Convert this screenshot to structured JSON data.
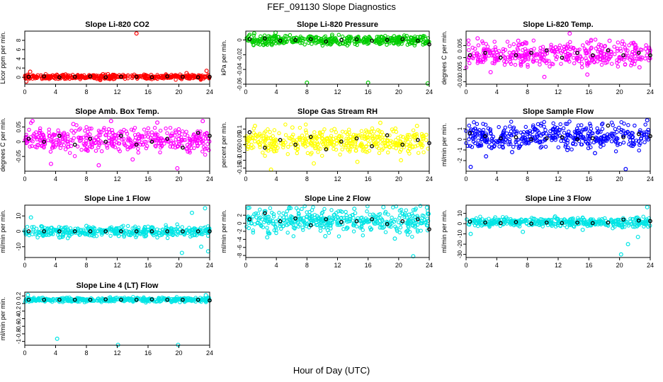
{
  "figure": {
    "title": "FEF_091130  Slope Diagnostics",
    "xlabel": "Hour of Day (UTC)"
  },
  "chart_data": [
    {
      "type": "scatter",
      "title": "Slope Li-820 CO2",
      "ylabel": "Licor ppm per min.",
      "xlim": [
        0,
        24
      ],
      "ylim": [
        -1.5,
        10
      ],
      "xticks": [
        0,
        4,
        8,
        12,
        16,
        20,
        24
      ],
      "yticks": [
        0,
        2,
        4,
        6,
        8
      ],
      "color": "#ff0000",
      "series": [
        {
          "x": [
            0.2,
            0.7,
            2.1,
            5.3,
            9.8,
            14.5,
            16.4,
            21.0,
            23.6
          ],
          "y": [
            -0.9,
            1.2,
            0.4,
            0.6,
            -0.6,
            9.5,
            0.5,
            0.9,
            1.4
          ]
        }
      ],
      "sample_series": [
        {
          "x": [
            0.5,
            2.5,
            4.5,
            6.5,
            8.5,
            10.5,
            12.5,
            14.5,
            16.5,
            18.5,
            20.5,
            22.5,
            24.0
          ],
          "y": [
            0.1,
            0.2,
            0.0,
            0.1,
            0.2,
            0.0,
            0.1,
            0.1,
            0.0,
            0.2,
            0.1,
            0.0,
            0.1
          ]
        }
      ]
    },
    {
      "type": "scatter",
      "title": "Slope Li-820 Pressure",
      "ylabel": "kPa per min.",
      "xlim": [
        0,
        24
      ],
      "ylim": [
        -0.06,
        0.012
      ],
      "xticks": [
        0,
        4,
        8,
        12,
        16,
        20,
        24
      ],
      "yticks": [
        -0.06,
        -0.04,
        -0.02,
        0.0
      ],
      "color": "#00cc00",
      "series": [
        {
          "x": [
            1.1,
            3.9,
            8.0,
            11.3,
            16.0,
            19.4,
            23.8
          ],
          "y": [
            0.009,
            0.01,
            -0.058,
            0.007,
            -0.058,
            0.005,
            -0.059
          ]
        }
      ],
      "sample_series": [
        {
          "x": [
            0.5,
            2.5,
            4.5,
            6.5,
            8.5,
            10.5,
            12.5,
            14.5,
            16.5,
            18.5,
            20.5,
            22.5,
            24.0
          ],
          "y": [
            0.001,
            0.002,
            -0.001,
            0.0,
            0.001,
            -0.002,
            0.0,
            0.001,
            -0.001,
            0.0,
            0.001,
            -0.001,
            -0.006
          ]
        }
      ]
    },
    {
      "type": "scatter",
      "title": "Slope Li-820 Temp.",
      "ylabel": "degrees C per min.",
      "xlim": [
        0,
        24
      ],
      "ylim": [
        -0.011,
        0.011
      ],
      "xticks": [
        0,
        4,
        8,
        12,
        16,
        20,
        24
      ],
      "yticks": [
        -0.01,
        -0.005,
        0.0,
        0.005
      ],
      "color": "#ff00ff",
      "series": [
        {
          "x": [
            1.5,
            3.2,
            6.8,
            10.2,
            13.5,
            15.8,
            18.7,
            22.6
          ],
          "y": [
            0.008,
            -0.006,
            0.007,
            -0.008,
            0.01,
            -0.007,
            0.007,
            -0.004
          ]
        }
      ],
      "sample_series": [
        {
          "x": [
            0.5,
            2.5,
            4.5,
            6.5,
            8.5,
            10.5,
            12.5,
            14.5,
            16.5,
            18.5,
            20.5,
            22.5,
            24.0
          ],
          "y": [
            0.001,
            0.002,
            0.0,
            0.001,
            0.002,
            0.003,
            0.0,
            0.002,
            0.001,
            0.003,
            0.001,
            0.002,
            0.001
          ]
        }
      ]
    },
    {
      "type": "scatter",
      "title": "Slope Amb. Box Temp.",
      "ylabel": "degrees C per min.",
      "xlim": [
        0,
        24
      ],
      "ylim": [
        -0.1,
        0.08
      ],
      "xticks": [
        0,
        4,
        8,
        12,
        16,
        20,
        24
      ],
      "yticks": [
        -0.05,
        0.0,
        0.05
      ],
      "color": "#ff00ff",
      "series": [
        {
          "x": [
            1.0,
            3.4,
            6.3,
            9.6,
            11.2,
            14.0,
            17.2,
            19.8,
            23.1
          ],
          "y": [
            0.07,
            -0.075,
            0.06,
            -0.08,
            0.07,
            -0.06,
            0.065,
            -0.09,
            0.07
          ]
        }
      ],
      "sample_series": [
        {
          "x": [
            0.5,
            2.5,
            4.5,
            6.5,
            8.5,
            10.5,
            12.5,
            14.5,
            16.5,
            18.5,
            20.5,
            22.5,
            24.0
          ],
          "y": [
            0.01,
            0.0,
            0.02,
            -0.01,
            0.01,
            0.0,
            0.02,
            -0.01,
            0.0,
            0.01,
            -0.02,
            0.03,
            0.02
          ]
        }
      ]
    },
    {
      "type": "scatter",
      "title": "Slope Gas Stream RH",
      "ylabel": "percent per min.",
      "xlim": [
        0,
        24
      ],
      "ylim": [
        -0.17,
        0.17
      ],
      "xticks": [
        0,
        4,
        8,
        12,
        16,
        20,
        24
      ],
      "yticks": [
        -0.15,
        -0.1,
        -0.05,
        0.0,
        0.05,
        0.1
      ],
      "color": "#ffff00",
      "series": [
        {
          "x": [
            1.2,
            3.3,
            6.1,
            8.9,
            11.6,
            14.6,
            17.6,
            20.3,
            22.4
          ],
          "y": [
            0.12,
            -0.16,
            0.11,
            -0.12,
            0.1,
            -0.11,
            0.14,
            -0.1,
            0.12
          ]
        }
      ],
      "sample_series": [
        {
          "x": [
            0.5,
            2.5,
            4.5,
            6.5,
            8.5,
            10.5,
            12.5,
            14.5,
            16.5,
            18.5,
            20.5,
            22.5,
            24.0
          ],
          "y": [
            0.08,
            -0.02,
            0.03,
            0.0,
            0.05,
            -0.03,
            0.02,
            0.04,
            -0.01,
            0.06,
            0.0,
            0.03,
            0.01
          ]
        }
      ]
    },
    {
      "type": "scatter",
      "title": "Slope Sample Flow",
      "ylabel": "ml/min per min.",
      "xlim": [
        0,
        24
      ],
      "ylim": [
        -3,
        2
      ],
      "xticks": [
        0,
        4,
        8,
        12,
        16,
        20,
        24
      ],
      "yticks": [
        -2,
        -1,
        0,
        1
      ],
      "color": "#0000ff",
      "series": [
        {
          "x": [
            0.6,
            2.6,
            6.0,
            9.3,
            13.2,
            16.8,
            20.8,
            23.6
          ],
          "y": [
            -2.6,
            -1.6,
            -1.2,
            0.8,
            -1.0,
            -1.3,
            -2.8,
            1.8
          ]
        }
      ],
      "sample_series": [
        {
          "x": [
            0.5,
            2.5,
            4.5,
            6.5,
            8.5,
            10.5,
            12.5,
            14.5,
            16.5,
            18.5,
            20.5,
            22.5,
            24.0
          ],
          "y": [
            0.6,
            0.3,
            0.1,
            0.2,
            0.0,
            0.1,
            0.2,
            0.0,
            0.1,
            1.3,
            0.2,
            0.5,
            0.3
          ]
        }
      ]
    },
    {
      "type": "scatter",
      "title": "Slope Line 1 Flow",
      "ylabel": "ml/min per min.",
      "xlim": [
        0,
        24
      ],
      "ylim": [
        -17,
        17
      ],
      "xticks": [
        0,
        4,
        8,
        12,
        16,
        20,
        24
      ],
      "yticks": [
        -10,
        0,
        10
      ],
      "color": "#00e5e5",
      "series": [
        {
          "x": [
            0.8,
            4.5,
            8.0,
            12.2,
            16.0,
            20.4,
            21.7,
            22.9,
            23.4,
            23.8
          ],
          "y": [
            9.0,
            -4.0,
            3.5,
            -3.0,
            3.0,
            -14.0,
            12.0,
            -10.0,
            15.0,
            -13.0
          ]
        }
      ],
      "sample_series": [
        {
          "x": [
            0.5,
            2.5,
            4.5,
            6.5,
            8.5,
            10.5,
            12.5,
            14.5,
            16.5,
            18.5,
            20.5,
            22.5,
            24.0
          ],
          "y": [
            0,
            0,
            0,
            0,
            0,
            0,
            0,
            0,
            0,
            0,
            0,
            0,
            0
          ]
        }
      ]
    },
    {
      "type": "scatter",
      "title": "Slope Line 2 Flow",
      "ylabel": "ml/min per min.",
      "xlim": [
        0,
        24
      ],
      "ylim": [
        -8.5,
        4.5
      ],
      "xticks": [
        0,
        4,
        8,
        12,
        16,
        20,
        24
      ],
      "yticks": [
        -8,
        -6,
        -4,
        -2,
        0,
        2
      ],
      "color": "#00e5e5",
      "series": [
        {
          "x": [
            0.3,
            2.8,
            5.7,
            10.4,
            14.2,
            18.0,
            19.5,
            21.9,
            23.7
          ],
          "y": [
            3.8,
            -3.5,
            3.9,
            -3.2,
            3.6,
            4.0,
            -3.8,
            -8.2,
            3.9
          ]
        }
      ],
      "sample_series": [
        {
          "x": [
            0.5,
            2.5,
            4.5,
            6.5,
            8.5,
            10.5,
            12.5,
            14.5,
            16.5,
            18.5,
            20.5,
            22.5,
            24.0
          ],
          "y": [
            1.0,
            2.5,
            0.5,
            1.2,
            -0.5,
            1.0,
            0.3,
            0.5,
            1.0,
            -0.2,
            0.5,
            1.0,
            -1.5
          ]
        }
      ]
    },
    {
      "type": "scatter",
      "title": "Slope Line 3 Flow",
      "ylabel": "ml/min per min.",
      "xlim": [
        0,
        24
      ],
      "ylim": [
        -33,
        18
      ],
      "xticks": [
        0,
        4,
        8,
        12,
        16,
        20,
        24
      ],
      "yticks": [
        -30,
        -20,
        -10,
        0,
        10
      ],
      "color": "#00e5e5",
      "series": [
        {
          "x": [
            0.6,
            3.8,
            7.4,
            11.6,
            15.2,
            20.2,
            21.1,
            22.4,
            23.6
          ],
          "y": [
            -10.0,
            6.0,
            -8.0,
            7.0,
            -6.0,
            -30.0,
            -20.0,
            -13.0,
            16.0
          ]
        }
      ],
      "sample_series": [
        {
          "x": [
            0.5,
            2.5,
            4.5,
            6.5,
            8.5,
            10.5,
            12.5,
            14.5,
            16.5,
            18.5,
            20.5,
            22.5,
            24.0
          ],
          "y": [
            2.0,
            1.0,
            0.5,
            1.5,
            0.0,
            1.0,
            0.5,
            1.0,
            0.5,
            1.0,
            4.0,
            3.0,
            2.5
          ]
        }
      ]
    },
    {
      "type": "scatter",
      "title": "Slope Line 4 (LT) Flow",
      "ylabel": "ml/min per min.",
      "xlim": [
        0,
        24
      ],
      "ylim": [
        -1.1,
        0.3
      ],
      "xticks": [
        0,
        4,
        8,
        12,
        16,
        20,
        24
      ],
      "yticks": [
        -1.0,
        -0.8,
        -0.6,
        -0.4,
        -0.2,
        0.0,
        0.2
      ],
      "color": "#00e5e5",
      "series": [
        {
          "x": [
            0.4,
            4.2,
            12.1,
            19.9,
            23.5
          ],
          "y": [
            0.23,
            -0.93,
            -1.09,
            -1.09,
            0.22
          ]
        }
      ],
      "sample_series": [
        {
          "x": [
            0.5,
            2.5,
            4.5,
            6.5,
            8.5,
            10.5,
            12.5,
            14.5,
            16.5,
            18.5,
            20.5,
            22.5,
            24.0
          ],
          "y": [
            0.1,
            0.1,
            0.1,
            0.1,
            0.1,
            0.11,
            0.1,
            0.1,
            0.11,
            0.1,
            0.1,
            0.1,
            0.08
          ]
        }
      ]
    }
  ]
}
